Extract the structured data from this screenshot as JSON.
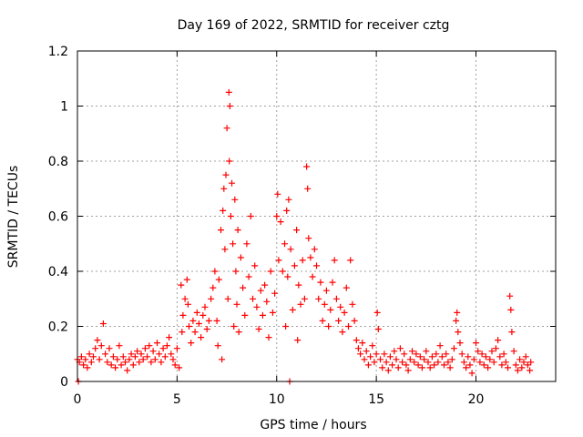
{
  "chart_data": {
    "type": "scatter",
    "title": "Day 169 of 2022, SRMTID for receiver cztg",
    "xlabel": "GPS time / hours",
    "ylabel": "SRMTID / TECUs",
    "xlim": [
      0,
      24
    ],
    "ylim": [
      0,
      1.2
    ],
    "xticks": [
      0,
      5,
      10,
      15,
      20
    ],
    "xtick_labels": [
      "0",
      "5",
      "10",
      "15",
      "20"
    ],
    "yticks": [
      0,
      0.2,
      0.4,
      0.6,
      0.8,
      1.0,
      1.2
    ],
    "ytick_labels": [
      "0",
      "0.2",
      "0.4",
      "0.6",
      "0.8",
      "1",
      "1.2"
    ],
    "grid": true,
    "marker": "+",
    "series": [
      {
        "name": "SRMTID",
        "color": "#ff0000",
        "points": [
          [
            0.0,
            0.08
          ],
          [
            0.05,
            0.0
          ],
          [
            0.1,
            0.07
          ],
          [
            0.2,
            0.09
          ],
          [
            0.3,
            0.06
          ],
          [
            0.4,
            0.08
          ],
          [
            0.5,
            0.05
          ],
          [
            0.6,
            0.1
          ],
          [
            0.7,
            0.07
          ],
          [
            0.8,
            0.09
          ],
          [
            0.9,
            0.12
          ],
          [
            1.0,
            0.15
          ],
          [
            1.1,
            0.08
          ],
          [
            1.2,
            0.13
          ],
          [
            1.3,
            0.21
          ],
          [
            1.4,
            0.1
          ],
          [
            1.5,
            0.07
          ],
          [
            1.6,
            0.12
          ],
          [
            1.7,
            0.06
          ],
          [
            1.8,
            0.09
          ],
          [
            1.9,
            0.05
          ],
          [
            2.0,
            0.08
          ],
          [
            2.1,
            0.13
          ],
          [
            2.2,
            0.06
          ],
          [
            2.3,
            0.09
          ],
          [
            2.4,
            0.07
          ],
          [
            2.5,
            0.04
          ],
          [
            2.6,
            0.08
          ],
          [
            2.7,
            0.1
          ],
          [
            2.8,
            0.06
          ],
          [
            2.9,
            0.09
          ],
          [
            3.0,
            0.11
          ],
          [
            3.1,
            0.07
          ],
          [
            3.2,
            0.1
          ],
          [
            3.3,
            0.08
          ],
          [
            3.4,
            0.12
          ],
          [
            3.5,
            0.09
          ],
          [
            3.6,
            0.13
          ],
          [
            3.7,
            0.07
          ],
          [
            3.8,
            0.11
          ],
          [
            3.9,
            0.08
          ],
          [
            4.0,
            0.14
          ],
          [
            4.1,
            0.1
          ],
          [
            4.2,
            0.07
          ],
          [
            4.3,
            0.12
          ],
          [
            4.4,
            0.09
          ],
          [
            4.5,
            0.13
          ],
          [
            4.6,
            0.16
          ],
          [
            4.7,
            0.1
          ],
          [
            4.8,
            0.08
          ],
          [
            4.9,
            0.06
          ],
          [
            5.0,
            0.12
          ],
          [
            5.1,
            0.05
          ],
          [
            5.2,
            0.35
          ],
          [
            5.25,
            0.18
          ],
          [
            5.3,
            0.24
          ],
          [
            5.4,
            0.3
          ],
          [
            5.5,
            0.37
          ],
          [
            5.55,
            0.28
          ],
          [
            5.6,
            0.2
          ],
          [
            5.7,
            0.14
          ],
          [
            5.8,
            0.22
          ],
          [
            5.9,
            0.18
          ],
          [
            6.0,
            0.25
          ],
          [
            6.1,
            0.21
          ],
          [
            6.2,
            0.16
          ],
          [
            6.3,
            0.24
          ],
          [
            6.4,
            0.27
          ],
          [
            6.5,
            0.19
          ],
          [
            6.6,
            0.22
          ],
          [
            6.7,
            0.3
          ],
          [
            6.8,
            0.34
          ],
          [
            6.9,
            0.4
          ],
          [
            7.0,
            0.22
          ],
          [
            7.05,
            0.13
          ],
          [
            7.1,
            0.37
          ],
          [
            7.2,
            0.55
          ],
          [
            7.25,
            0.08
          ],
          [
            7.3,
            0.62
          ],
          [
            7.35,
            0.7
          ],
          [
            7.4,
            0.48
          ],
          [
            7.45,
            0.75
          ],
          [
            7.5,
            0.92
          ],
          [
            7.55,
            0.3
          ],
          [
            7.6,
            1.05
          ],
          [
            7.62,
            0.8
          ],
          [
            7.65,
            1.0
          ],
          [
            7.7,
            0.6
          ],
          [
            7.75,
            0.72
          ],
          [
            7.8,
            0.5
          ],
          [
            7.85,
            0.2
          ],
          [
            7.9,
            0.66
          ],
          [
            7.95,
            0.4
          ],
          [
            8.0,
            0.28
          ],
          [
            8.05,
            0.55
          ],
          [
            8.1,
            0.18
          ],
          [
            8.2,
            0.45
          ],
          [
            8.3,
            0.34
          ],
          [
            8.4,
            0.24
          ],
          [
            8.5,
            0.5
          ],
          [
            8.6,
            0.38
          ],
          [
            8.7,
            0.6
          ],
          [
            8.8,
            0.3
          ],
          [
            8.9,
            0.42
          ],
          [
            9.0,
            0.27
          ],
          [
            9.1,
            0.19
          ],
          [
            9.2,
            0.33
          ],
          [
            9.3,
            0.24
          ],
          [
            9.4,
            0.35
          ],
          [
            9.5,
            0.29
          ],
          [
            9.6,
            0.16
          ],
          [
            9.7,
            0.4
          ],
          [
            9.8,
            0.25
          ],
          [
            9.9,
            0.32
          ],
          [
            10.0,
            0.6
          ],
          [
            10.05,
            0.68
          ],
          [
            10.1,
            0.44
          ],
          [
            10.2,
            0.58
          ],
          [
            10.3,
            0.4
          ],
          [
            10.4,
            0.5
          ],
          [
            10.45,
            0.2
          ],
          [
            10.5,
            0.62
          ],
          [
            10.55,
            0.38
          ],
          [
            10.6,
            0.66
          ],
          [
            10.65,
            0.0
          ],
          [
            10.7,
            0.48
          ],
          [
            10.8,
            0.26
          ],
          [
            10.9,
            0.42
          ],
          [
            11.0,
            0.55
          ],
          [
            11.05,
            0.15
          ],
          [
            11.1,
            0.35
          ],
          [
            11.2,
            0.28
          ],
          [
            11.3,
            0.44
          ],
          [
            11.4,
            0.3
          ],
          [
            11.5,
            0.78
          ],
          [
            11.55,
            0.7
          ],
          [
            11.6,
            0.52
          ],
          [
            11.7,
            0.45
          ],
          [
            11.8,
            0.38
          ],
          [
            11.9,
            0.48
          ],
          [
            12.0,
            0.42
          ],
          [
            12.1,
            0.3
          ],
          [
            12.2,
            0.36
          ],
          [
            12.3,
            0.22
          ],
          [
            12.4,
            0.28
          ],
          [
            12.5,
            0.33
          ],
          [
            12.6,
            0.2
          ],
          [
            12.7,
            0.26
          ],
          [
            12.8,
            0.36
          ],
          [
            12.9,
            0.44
          ],
          [
            13.0,
            0.3
          ],
          [
            13.1,
            0.22
          ],
          [
            13.2,
            0.27
          ],
          [
            13.3,
            0.18
          ],
          [
            13.4,
            0.25
          ],
          [
            13.5,
            0.34
          ],
          [
            13.6,
            0.2
          ],
          [
            13.7,
            0.44
          ],
          [
            13.8,
            0.28
          ],
          [
            13.9,
            0.22
          ],
          [
            14.0,
            0.15
          ],
          [
            14.1,
            0.12
          ],
          [
            14.2,
            0.1
          ],
          [
            14.3,
            0.14
          ],
          [
            14.4,
            0.08
          ],
          [
            14.5,
            0.11
          ],
          [
            14.6,
            0.06
          ],
          [
            14.7,
            0.09
          ],
          [
            14.8,
            0.13
          ],
          [
            14.9,
            0.07
          ],
          [
            15.0,
            0.1
          ],
          [
            15.05,
            0.25
          ],
          [
            15.1,
            0.19
          ],
          [
            15.2,
            0.08
          ],
          [
            15.3,
            0.05
          ],
          [
            15.4,
            0.1
          ],
          [
            15.5,
            0.07
          ],
          [
            15.6,
            0.04
          ],
          [
            15.7,
            0.09
          ],
          [
            15.8,
            0.06
          ],
          [
            15.9,
            0.11
          ],
          [
            16.0,
            0.08
          ],
          [
            16.1,
            0.05
          ],
          [
            16.2,
            0.12
          ],
          [
            16.3,
            0.07
          ],
          [
            16.4,
            0.1
          ],
          [
            16.5,
            0.06
          ],
          [
            16.6,
            0.04
          ],
          [
            16.7,
            0.08
          ],
          [
            16.8,
            0.11
          ],
          [
            16.9,
            0.07
          ],
          [
            17.0,
            0.1
          ],
          [
            17.1,
            0.06
          ],
          [
            17.2,
            0.09
          ],
          [
            17.3,
            0.05
          ],
          [
            17.4,
            0.08
          ],
          [
            17.5,
            0.11
          ],
          [
            17.6,
            0.07
          ],
          [
            17.7,
            0.05
          ],
          [
            17.8,
            0.09
          ],
          [
            17.9,
            0.06
          ],
          [
            18.0,
            0.1
          ],
          [
            18.1,
            0.07
          ],
          [
            18.2,
            0.13
          ],
          [
            18.3,
            0.09
          ],
          [
            18.4,
            0.06
          ],
          [
            18.5,
            0.1
          ],
          [
            18.6,
            0.07
          ],
          [
            18.7,
            0.05
          ],
          [
            18.8,
            0.08
          ],
          [
            18.9,
            0.12
          ],
          [
            19.0,
            0.22
          ],
          [
            19.05,
            0.25
          ],
          [
            19.1,
            0.18
          ],
          [
            19.2,
            0.14
          ],
          [
            19.3,
            0.1
          ],
          [
            19.4,
            0.07
          ],
          [
            19.5,
            0.05
          ],
          [
            19.6,
            0.09
          ],
          [
            19.7,
            0.06
          ],
          [
            19.8,
            0.03
          ],
          [
            19.9,
            0.08
          ],
          [
            20.0,
            0.14
          ],
          [
            20.1,
            0.11
          ],
          [
            20.2,
            0.07
          ],
          [
            20.3,
            0.1
          ],
          [
            20.4,
            0.06
          ],
          [
            20.5,
            0.09
          ],
          [
            20.6,
            0.05
          ],
          [
            20.7,
            0.08
          ],
          [
            20.8,
            0.11
          ],
          [
            20.9,
            0.07
          ],
          [
            21.0,
            0.12
          ],
          [
            21.1,
            0.15
          ],
          [
            21.2,
            0.09
          ],
          [
            21.3,
            0.06
          ],
          [
            21.4,
            0.1
          ],
          [
            21.5,
            0.07
          ],
          [
            21.6,
            0.05
          ],
          [
            21.7,
            0.31
          ],
          [
            21.75,
            0.26
          ],
          [
            21.8,
            0.18
          ],
          [
            21.9,
            0.11
          ],
          [
            22.0,
            0.06
          ],
          [
            22.1,
            0.04
          ],
          [
            22.2,
            0.08
          ],
          [
            22.3,
            0.05
          ],
          [
            22.4,
            0.07
          ],
          [
            22.5,
            0.09
          ],
          [
            22.6,
            0.06
          ],
          [
            22.7,
            0.04
          ],
          [
            22.75,
            0.07
          ]
        ]
      }
    ]
  }
}
